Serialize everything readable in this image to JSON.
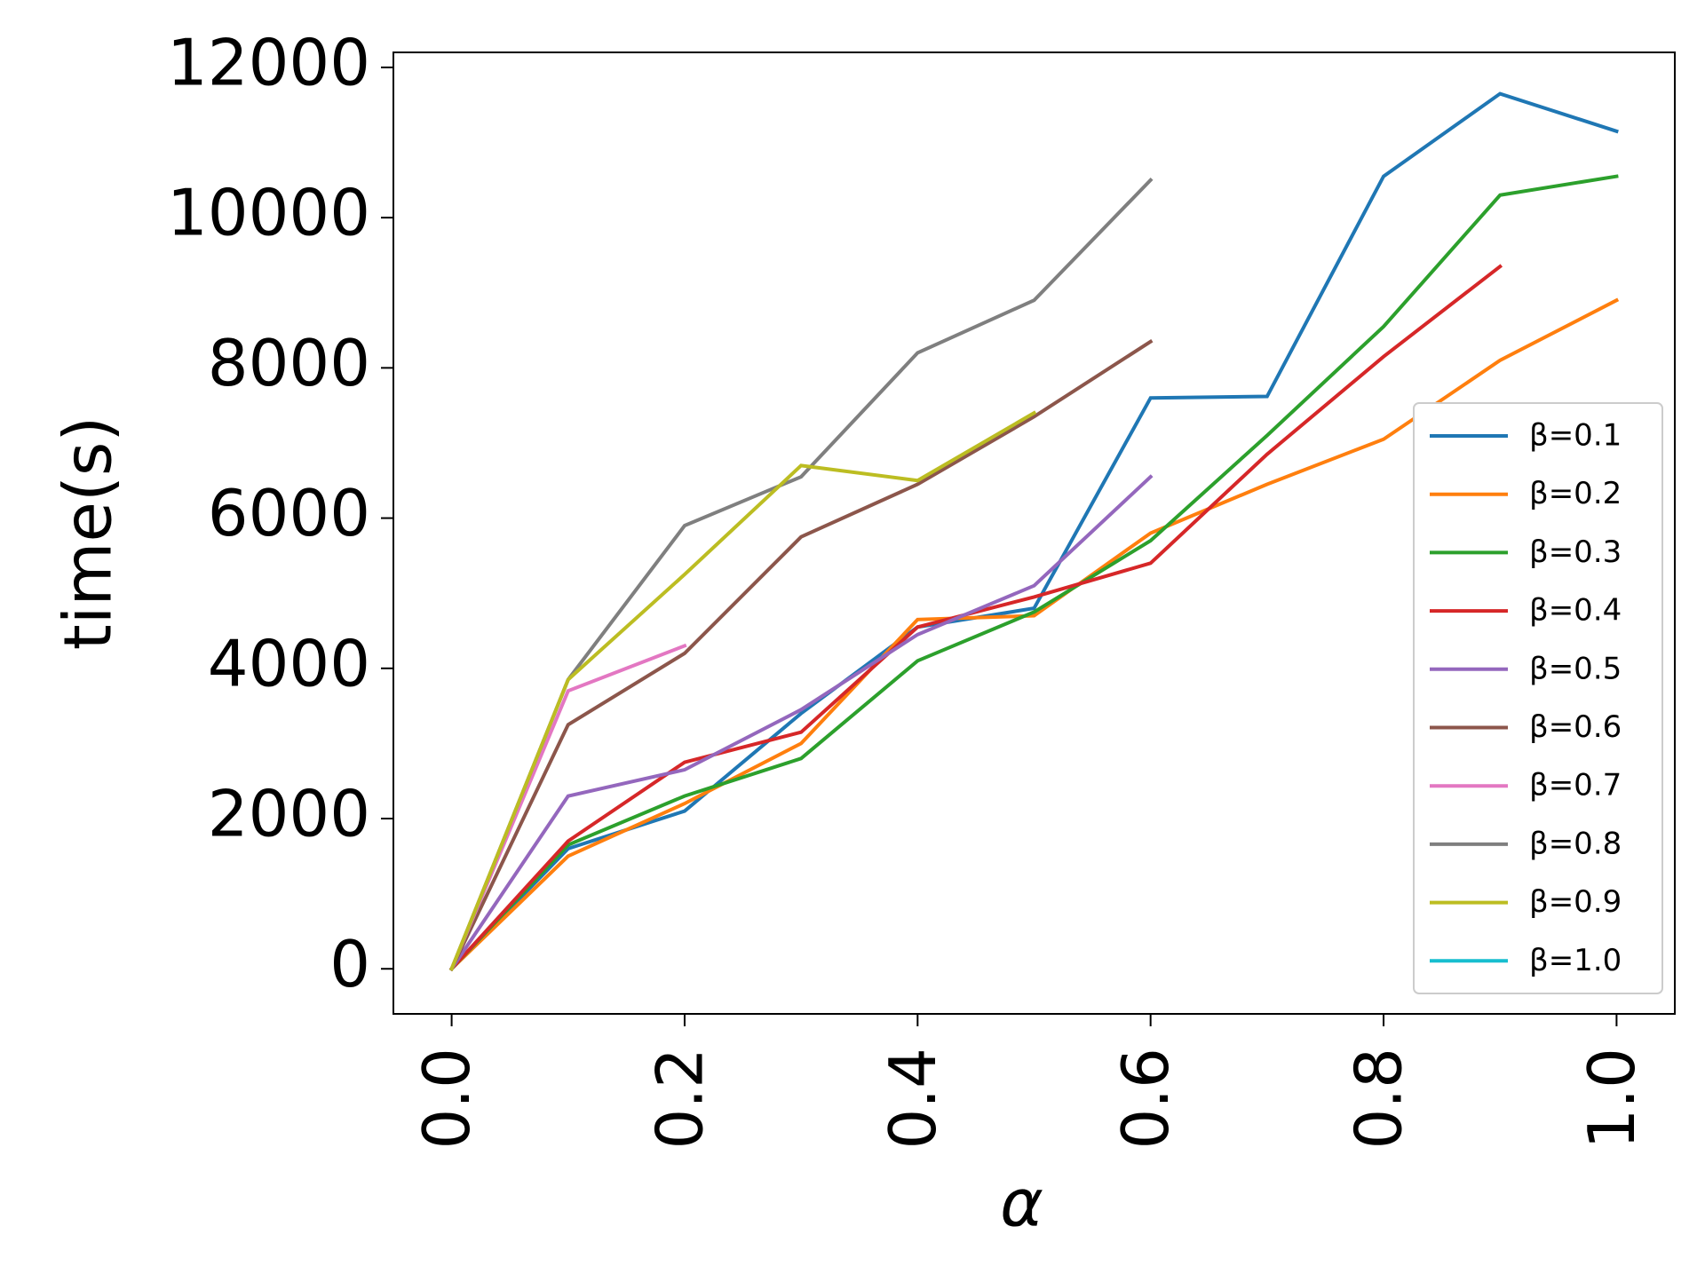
{
  "chart_data": {
    "type": "line",
    "title": "",
    "xlabel": "α",
    "ylabel": "time(s)",
    "xlim": [
      -0.05,
      1.05
    ],
    "ylim": [
      -600,
      12200
    ],
    "x_ticks": [
      0.0,
      0.2,
      0.4,
      0.6,
      0.8,
      1.0
    ],
    "x_tick_labels": [
      "0.0",
      "0.2",
      "0.4",
      "0.6",
      "0.8",
      "1.0"
    ],
    "y_ticks": [
      0,
      2000,
      4000,
      6000,
      8000,
      10000,
      12000
    ],
    "y_tick_labels": [
      "0",
      "2000",
      "4000",
      "6000",
      "8000",
      "10000",
      "12000"
    ],
    "grid": false,
    "legend_position": "center-right",
    "series": [
      {
        "name": "β=0.1",
        "color": "#1f77b4",
        "x": [
          0.0,
          0.1,
          0.2,
          0.3,
          0.4,
          0.5,
          0.6,
          0.7,
          0.8,
          0.9,
          1.0
        ],
        "y": [
          0,
          1600,
          2100,
          3400,
          4550,
          4800,
          7600,
          7620,
          10550,
          11650,
          11150
        ]
      },
      {
        "name": "β=0.2",
        "color": "#ff7f0e",
        "x": [
          0.0,
          0.1,
          0.2,
          0.3,
          0.4,
          0.5,
          0.6,
          0.7,
          0.8,
          0.9,
          1.0
        ],
        "y": [
          0,
          1500,
          2200,
          3000,
          4650,
          4700,
          5800,
          6450,
          7050,
          8100,
          8900
        ]
      },
      {
        "name": "β=0.3",
        "color": "#2ca02c",
        "x": [
          0.0,
          0.1,
          0.2,
          0.3,
          0.4,
          0.5,
          0.6,
          0.7,
          0.8,
          0.9,
          1.0
        ],
        "y": [
          0,
          1650,
          2300,
          2800,
          4100,
          4750,
          5700,
          7100,
          8550,
          10300,
          10550
        ]
      },
      {
        "name": "β=0.4",
        "color": "#d62728",
        "x": [
          0.0,
          0.1,
          0.2,
          0.3,
          0.4,
          0.5,
          0.6,
          0.7,
          0.8,
          0.9
        ],
        "y": [
          0,
          1700,
          2750,
          3150,
          4550,
          4950,
          5400,
          6850,
          8150,
          9350
        ]
      },
      {
        "name": "β=0.5",
        "color": "#9467bd",
        "x": [
          0.0,
          0.1,
          0.2,
          0.3,
          0.4,
          0.5,
          0.6
        ],
        "y": [
          0,
          2300,
          2650,
          3450,
          4450,
          5100,
          6550
        ]
      },
      {
        "name": "β=0.6",
        "color": "#8c564b",
        "x": [
          0.0,
          0.1,
          0.2,
          0.3,
          0.4,
          0.5,
          0.6
        ],
        "y": [
          0,
          3250,
          4200,
          5750,
          6450,
          7350,
          8350
        ]
      },
      {
        "name": "β=0.7",
        "color": "#e377c2",
        "x": [
          0.0,
          0.1,
          0.2
        ],
        "y": [
          0,
          3700,
          4300
        ]
      },
      {
        "name": "β=0.8",
        "color": "#7f7f7f",
        "x": [
          0.0,
          0.1,
          0.2,
          0.3,
          0.4,
          0.5,
          0.6
        ],
        "y": [
          0,
          3850,
          5900,
          6550,
          8200,
          8900,
          10500
        ]
      },
      {
        "name": "β=0.9",
        "color": "#bcbd22",
        "x": [
          0.0,
          0.1,
          0.2,
          0.3,
          0.4,
          0.5
        ],
        "y": [
          0,
          3850,
          5250,
          6700,
          6500,
          7400
        ]
      },
      {
        "name": "β=1.0",
        "color": "#17becf",
        "x": [
          0.0
        ],
        "y": [
          0
        ]
      }
    ]
  }
}
